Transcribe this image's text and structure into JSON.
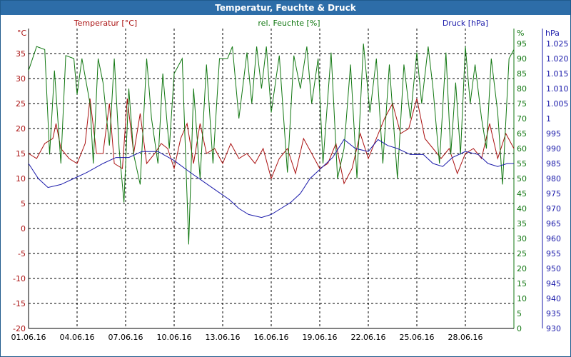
{
  "window": {
    "title": "Temperatur, Feuchte & Druck"
  },
  "chart_data": {
    "type": "line",
    "title": "Temperatur, Feuchte & Druck",
    "x": [
      "01.06.16",
      "04.06.16",
      "07.06.16",
      "10.06.16",
      "13.06.16",
      "16.06.16",
      "19.06.16",
      "22.06.16",
      "25.06.16",
      "28.06.16"
    ],
    "xlim": [
      1,
      31
    ],
    "grid": true,
    "axes": {
      "temperature": {
        "label": "Temperatur [°C]",
        "unit": "°C",
        "ylim": [
          -20,
          40
        ],
        "ticks": [
          -20,
          -15,
          -10,
          -5,
          0,
          5,
          10,
          15,
          20,
          25,
          30,
          35
        ],
        "color": "#aa1111"
      },
      "humidity": {
        "label": "rel. Feuchte [%]",
        "unit": "%",
        "ylim": [
          0,
          100
        ],
        "ticks": [
          0,
          5,
          10,
          15,
          20,
          25,
          30,
          35,
          40,
          45,
          50,
          55,
          60,
          65,
          70,
          75,
          80,
          85,
          90,
          95
        ],
        "color": "#117711"
      },
      "pressure": {
        "label": "Druck [hPa]",
        "unit": "hPa",
        "ylim": [
          930,
          1030
        ],
        "ticks": [
          930,
          935,
          940,
          945,
          950,
          955,
          960,
          965,
          970,
          975,
          980,
          985,
          990,
          995,
          1000,
          1005,
          1010,
          1015,
          1020,
          1025
        ],
        "color": "#1a1aaa"
      }
    },
    "series": [
      {
        "name": "Temperatur [°C]",
        "axis": "temperature",
        "color": "#aa1111",
        "points": [
          [
            1,
            15
          ],
          [
            1.5,
            14
          ],
          [
            2,
            17
          ],
          [
            2.5,
            18
          ],
          [
            2.7,
            21
          ],
          [
            3,
            16
          ],
          [
            3.5,
            14
          ],
          [
            4,
            13
          ],
          [
            4.5,
            17
          ],
          [
            4.8,
            26
          ],
          [
            5.2,
            15
          ],
          [
            5.6,
            15
          ],
          [
            6,
            25
          ],
          [
            6.3,
            13
          ],
          [
            6.8,
            12
          ],
          [
            7.1,
            26
          ],
          [
            7.5,
            15
          ],
          [
            7.9,
            23
          ],
          [
            8.3,
            13
          ],
          [
            8.8,
            15
          ],
          [
            9.2,
            17
          ],
          [
            9.6,
            16
          ],
          [
            10,
            12
          ],
          [
            10.4,
            18
          ],
          [
            10.8,
            21
          ],
          [
            11.2,
            13
          ],
          [
            11.6,
            21
          ],
          [
            12,
            15
          ],
          [
            12.5,
            16
          ],
          [
            13,
            13
          ],
          [
            13.5,
            17
          ],
          [
            14,
            14
          ],
          [
            14.5,
            15
          ],
          [
            15,
            13
          ],
          [
            15.5,
            16
          ],
          [
            16,
            10
          ],
          [
            16.5,
            14
          ],
          [
            17,
            16
          ],
          [
            17.5,
            11
          ],
          [
            18,
            18
          ],
          [
            18.5,
            15
          ],
          [
            19,
            12
          ],
          [
            19.5,
            13
          ],
          [
            20,
            17
          ],
          [
            20.5,
            9
          ],
          [
            21,
            12
          ],
          [
            21.5,
            19
          ],
          [
            22,
            14
          ],
          [
            22.5,
            18
          ],
          [
            23,
            22
          ],
          [
            23.5,
            25
          ],
          [
            24,
            19
          ],
          [
            24.5,
            20
          ],
          [
            25,
            26
          ],
          [
            25.5,
            18
          ],
          [
            26,
            16
          ],
          [
            26.5,
            14
          ],
          [
            27,
            16
          ],
          [
            27.5,
            11
          ],
          [
            28,
            15
          ],
          [
            28.5,
            16
          ],
          [
            29,
            14
          ],
          [
            29.5,
            21
          ],
          [
            30,
            14
          ],
          [
            30.5,
            19
          ],
          [
            31,
            16
          ]
        ]
      },
      {
        "name": "rel. Feuchte [%]",
        "axis": "humidity",
        "color": "#117711",
        "points": [
          [
            1,
            86
          ],
          [
            1.5,
            94
          ],
          [
            2,
            93
          ],
          [
            2.3,
            58
          ],
          [
            2.6,
            86
          ],
          [
            3,
            55
          ],
          [
            3.3,
            91
          ],
          [
            3.8,
            90
          ],
          [
            4,
            78
          ],
          [
            4.3,
            90
          ],
          [
            4.8,
            75
          ],
          [
            5,
            55
          ],
          [
            5.3,
            90
          ],
          [
            5.6,
            82
          ],
          [
            6,
            61
          ],
          [
            6.3,
            90
          ],
          [
            6.6,
            60
          ],
          [
            6.9,
            42
          ],
          [
            7.2,
            80
          ],
          [
            7.5,
            58
          ],
          [
            7.9,
            48
          ],
          [
            8.3,
            90
          ],
          [
            8.6,
            70
          ],
          [
            9,
            55
          ],
          [
            9.3,
            85
          ],
          [
            9.7,
            60
          ],
          [
            10,
            85
          ],
          [
            10.5,
            90
          ],
          [
            10.9,
            28
          ],
          [
            11.2,
            80
          ],
          [
            11.6,
            50
          ],
          [
            12,
            88
          ],
          [
            12.4,
            55
          ],
          [
            12.8,
            90
          ],
          [
            13.3,
            90
          ],
          [
            13.6,
            94
          ],
          [
            14,
            70
          ],
          [
            14.5,
            92
          ],
          [
            14.8,
            75
          ],
          [
            15.1,
            94
          ],
          [
            15.4,
            80
          ],
          [
            15.7,
            94
          ],
          [
            16,
            72
          ],
          [
            16.5,
            91
          ],
          [
            17,
            52
          ],
          [
            17.4,
            91
          ],
          [
            17.8,
            80
          ],
          [
            18.2,
            94
          ],
          [
            18.5,
            75
          ],
          [
            18.9,
            90
          ],
          [
            19.2,
            55
          ],
          [
            19.7,
            92
          ],
          [
            20.1,
            50
          ],
          [
            20.5,
            60
          ],
          [
            20.9,
            88
          ],
          [
            21.3,
            50
          ],
          [
            21.7,
            95
          ],
          [
            22.1,
            72
          ],
          [
            22.5,
            90
          ],
          [
            22.9,
            55
          ],
          [
            23.3,
            88
          ],
          [
            23.8,
            50
          ],
          [
            24.2,
            88
          ],
          [
            24.6,
            70
          ],
          [
            25,
            92
          ],
          [
            25.3,
            75
          ],
          [
            25.7,
            94
          ],
          [
            26,
            80
          ],
          [
            26.4,
            55
          ],
          [
            26.8,
            92
          ],
          [
            27.1,
            58
          ],
          [
            27.4,
            82
          ],
          [
            27.7,
            58
          ],
          [
            28,
            94
          ],
          [
            28.3,
            75
          ],
          [
            28.6,
            88
          ],
          [
            29,
            70
          ],
          [
            29.3,
            60
          ],
          [
            29.6,
            90
          ],
          [
            30,
            72
          ],
          [
            30.3,
            48
          ],
          [
            30.7,
            90
          ],
          [
            31,
            93
          ]
        ]
      },
      {
        "name": "Druck [hPa]",
        "axis": "pressure",
        "color": "#1a1aaa",
        "points": [
          [
            1,
            985
          ],
          [
            1.6,
            980
          ],
          [
            2.2,
            977
          ],
          [
            3,
            978
          ],
          [
            3.8,
            980
          ],
          [
            4.6,
            982
          ],
          [
            5.6,
            985
          ],
          [
            6.4,
            987
          ],
          [
            7.2,
            987
          ],
          [
            8,
            989
          ],
          [
            9,
            989
          ],
          [
            10,
            986
          ],
          [
            11,
            982
          ],
          [
            11.8,
            979
          ],
          [
            12.6,
            976
          ],
          [
            13.4,
            973
          ],
          [
            14,
            970
          ],
          [
            14.6,
            968
          ],
          [
            15.4,
            967
          ],
          [
            16,
            968
          ],
          [
            16.6,
            970
          ],
          [
            17.2,
            972
          ],
          [
            17.8,
            975
          ],
          [
            18.4,
            980
          ],
          [
            19,
            983
          ],
          [
            19.8,
            987
          ],
          [
            20.5,
            993
          ],
          [
            21.2,
            990
          ],
          [
            22,
            989
          ],
          [
            22.6,
            993
          ],
          [
            23.2,
            991
          ],
          [
            23.8,
            990
          ],
          [
            24.6,
            988
          ],
          [
            25.4,
            988
          ],
          [
            26,
            985
          ],
          [
            26.6,
            984
          ],
          [
            27.2,
            987
          ],
          [
            28,
            989
          ],
          [
            28.8,
            988
          ],
          [
            29.4,
            985
          ],
          [
            30,
            984
          ],
          [
            30.6,
            985
          ],
          [
            31,
            985
          ]
        ]
      }
    ]
  }
}
